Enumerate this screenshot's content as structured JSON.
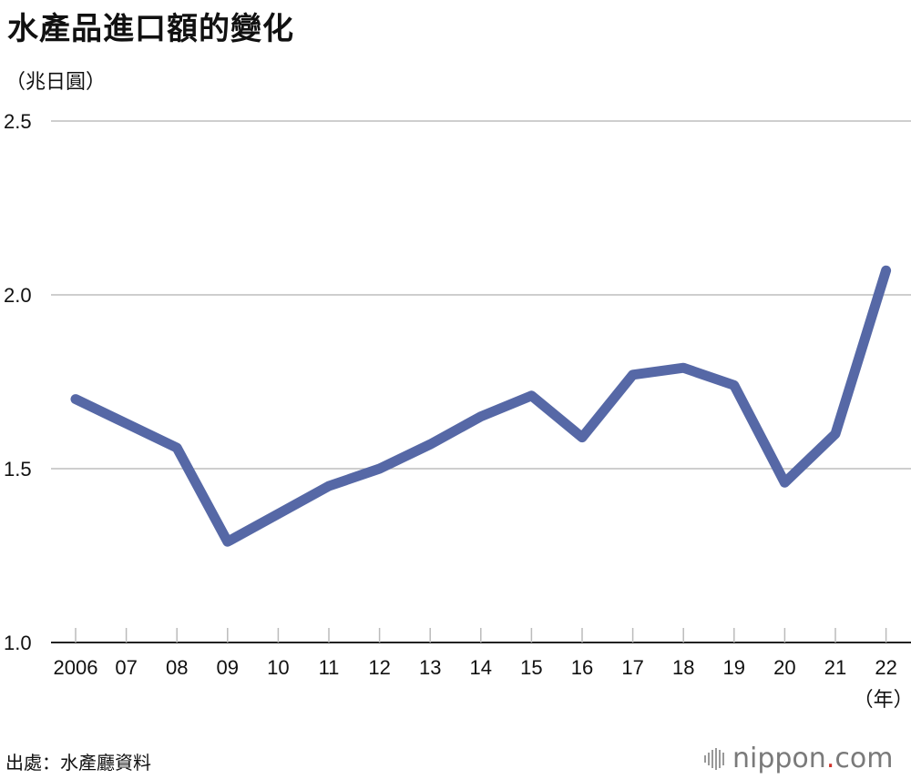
{
  "title": "水產品進口額的變化",
  "unit_label": "（兆日圓）",
  "x_unit_label": "（年）",
  "source": "出處：水產廳資料",
  "logo": {
    "name": "nippon",
    "dot": ".",
    "suffix": "com"
  },
  "colors": {
    "line": "#5668a6",
    "grid": "#bdbdbd",
    "axis": "#222222"
  },
  "chart_data": {
    "type": "line",
    "title": "水產品進口額的變化",
    "ylabel": "（兆日圓）",
    "xlabel": "（年）",
    "ylim": [
      1.0,
      2.5
    ],
    "yticks": [
      "1.0",
      "1.5",
      "2.0",
      "2.5"
    ],
    "grid": true,
    "categories": [
      "2006",
      "07",
      "08",
      "09",
      "10",
      "11",
      "12",
      "13",
      "14",
      "15",
      "16",
      "17",
      "18",
      "19",
      "20",
      "21",
      "22"
    ],
    "series": [
      {
        "values": [
          1.7,
          1.63,
          1.56,
          1.29,
          1.37,
          1.45,
          1.5,
          1.57,
          1.65,
          1.71,
          1.59,
          1.77,
          1.79,
          1.74,
          1.46,
          1.6,
          2.07
        ]
      }
    ]
  }
}
